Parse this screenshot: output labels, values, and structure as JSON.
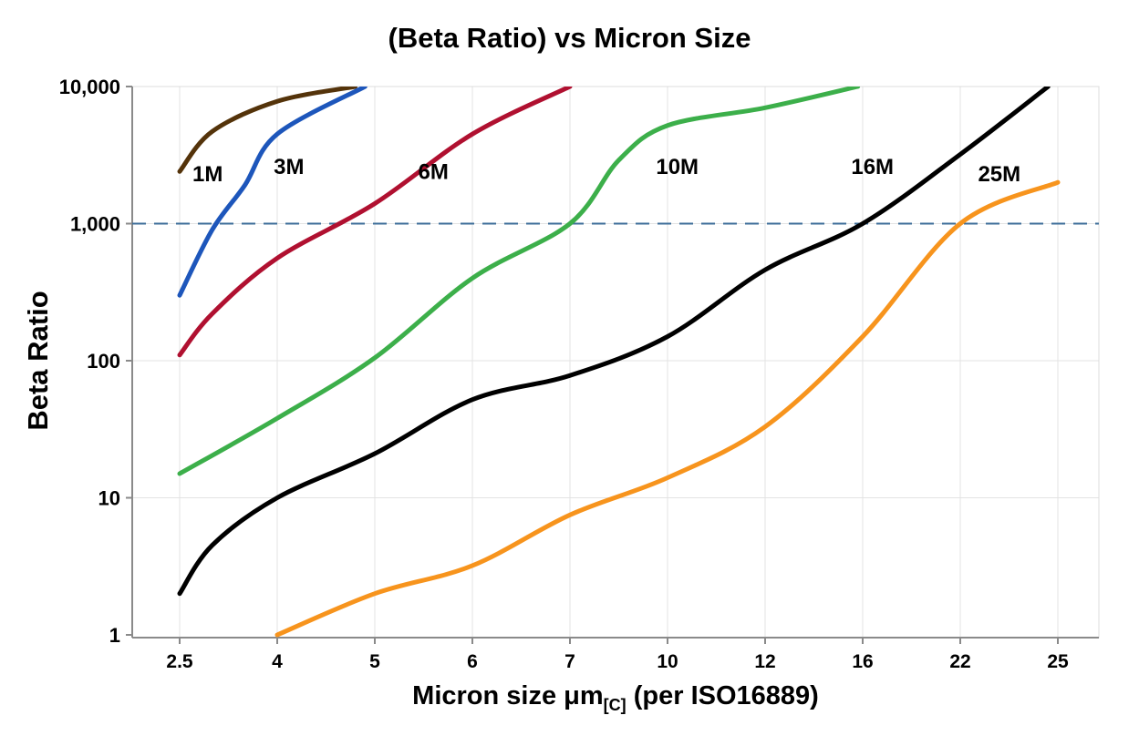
{
  "chart_data": {
    "type": "line",
    "title": "(Beta Ratio) vs Micron Size",
    "ylabel": "Beta Ratio",
    "xlabel": {
      "prefix": "Micron size μm",
      "subscript": "[C]",
      "suffix": " (per ISO16889)"
    },
    "x_axis": {
      "scale": "categorical-interpolated",
      "ticks": [
        2.5,
        4,
        5,
        6,
        7,
        10,
        12,
        16,
        22,
        25
      ],
      "tick_labels": [
        "2.5",
        "4",
        "5",
        "6",
        "7",
        "10",
        "12",
        "16",
        "22",
        "25"
      ]
    },
    "y_axis": {
      "scale": "log",
      "range": [
        1,
        10000
      ],
      "ticks": [
        1,
        10,
        100,
        1000,
        10000
      ],
      "tick_labels": [
        "1",
        "10",
        "100",
        "1,000",
        "10,000"
      ]
    },
    "grid": true,
    "reference_line": {
      "y": 1000,
      "style": "dashed",
      "color": "#3d6e99"
    },
    "series": [
      {
        "name": "1M",
        "color": "#54330a",
        "label_x": 2.93,
        "label_y": 2300,
        "points": [
          [
            2.5,
            2400
          ],
          [
            3,
            4700
          ],
          [
            4,
            7800
          ],
          [
            4.8,
            10000
          ]
        ]
      },
      {
        "name": "3M",
        "color": "#1d56bb",
        "label_x": 4.12,
        "label_y": 2600,
        "points": [
          [
            2.5,
            300
          ],
          [
            3,
            900
          ],
          [
            3.5,
            1900
          ],
          [
            4,
            4500
          ],
          [
            4.9,
            10000
          ]
        ]
      },
      {
        "name": "6M",
        "color": "#b01030",
        "label_x": 5.6,
        "label_y": 2400,
        "points": [
          [
            2.5,
            110
          ],
          [
            3,
            220
          ],
          [
            4,
            560
          ],
          [
            5,
            1400
          ],
          [
            6,
            4500
          ],
          [
            7,
            10000
          ]
        ]
      },
      {
        "name": "10M",
        "color": "#3caf4a",
        "label_x": 10.2,
        "label_y": 2600,
        "points": [
          [
            2.5,
            15
          ],
          [
            4,
            38
          ],
          [
            5,
            105
          ],
          [
            6,
            400
          ],
          [
            7,
            1000
          ],
          [
            8.5,
            2900
          ],
          [
            10,
            5200
          ],
          [
            12,
            7000
          ],
          [
            15.8,
            10000
          ]
        ]
      },
      {
        "name": "16M",
        "color": "#000000",
        "label_x": 16.6,
        "label_y": 2600,
        "points": [
          [
            2.5,
            2
          ],
          [
            3,
            4.5
          ],
          [
            4,
            10
          ],
          [
            5,
            21
          ],
          [
            6,
            52
          ],
          [
            7,
            78
          ],
          [
            10,
            150
          ],
          [
            12,
            460
          ],
          [
            16,
            1000
          ],
          [
            22,
            3200
          ],
          [
            24.7,
            10000
          ]
        ]
      },
      {
        "name": "25M",
        "color": "#f7941d",
        "label_x": 23.2,
        "label_y": 2300,
        "points": [
          [
            4,
            1
          ],
          [
            5,
            2
          ],
          [
            6,
            3.2
          ],
          [
            7,
            7.5
          ],
          [
            10,
            14
          ],
          [
            12,
            33
          ],
          [
            16,
            150
          ],
          [
            22,
            1000
          ],
          [
            25,
            2000
          ]
        ]
      }
    ]
  }
}
